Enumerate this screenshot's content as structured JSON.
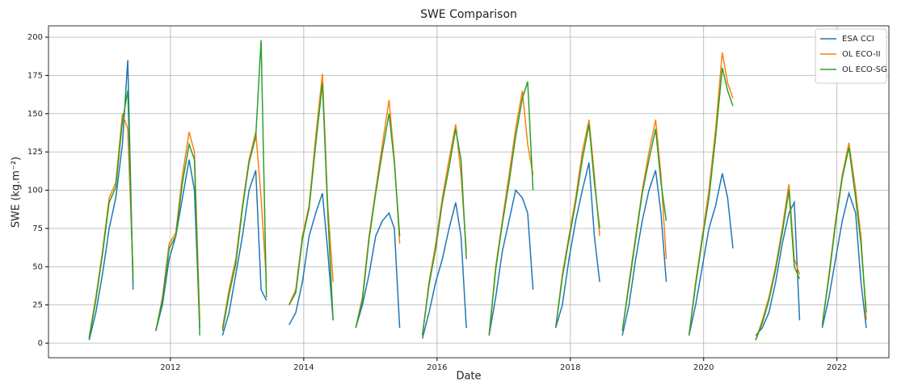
{
  "chart_data": {
    "type": "line",
    "title": "SWE Comparison",
    "x_label": "Date",
    "y_label": "SWE (kg.m⁻²)",
    "x": [
      2010.78,
      2010.88,
      2010.98,
      2011.08,
      2011.18,
      2011.28,
      2011.36,
      2011.44,
      2011.55,
      2011.78,
      2011.88,
      2011.98,
      2012.08,
      2012.18,
      2012.28,
      2012.36,
      2012.44,
      2012.55,
      2012.78,
      2012.88,
      2012.98,
      2013.08,
      2013.18,
      2013.28,
      2013.36,
      2013.44,
      2013.55,
      2013.78,
      2013.88,
      2013.98,
      2014.08,
      2014.18,
      2014.28,
      2014.36,
      2014.44,
      2014.55,
      2014.78,
      2014.88,
      2014.98,
      2015.08,
      2015.18,
      2015.28,
      2015.36,
      2015.44,
      2015.55,
      2015.78,
      2015.88,
      2015.98,
      2016.08,
      2016.18,
      2016.28,
      2016.36,
      2016.44,
      2016.55,
      2016.78,
      2016.88,
      2016.98,
      2017.08,
      2017.18,
      2017.28,
      2017.36,
      2017.44,
      2017.55,
      2017.78,
      2017.88,
      2017.98,
      2018.08,
      2018.18,
      2018.28,
      2018.36,
      2018.44,
      2018.55,
      2018.78,
      2018.88,
      2018.98,
      2019.08,
      2019.18,
      2019.28,
      2019.36,
      2019.44,
      2019.55,
      2019.78,
      2019.88,
      2019.98,
      2020.08,
      2020.18,
      2020.28,
      2020.36,
      2020.44,
      2020.55,
      2020.78,
      2020.88,
      2020.98,
      2021.08,
      2021.18,
      2021.28,
      2021.36,
      2021.44,
      2021.55,
      2021.78,
      2021.88,
      2021.98,
      2022.08,
      2022.18,
      2022.28,
      2022.36,
      2022.44,
      2022.55
    ],
    "series": [
      {
        "name": "ESA CCI",
        "color": "#1f77b4",
        "values": [
          2,
          20,
          45,
          75,
          95,
          130,
          185,
          35,
          null,
          8,
          25,
          55,
          70,
          95,
          120,
          100,
          10,
          null,
          5,
          20,
          45,
          70,
          100,
          113,
          35,
          28,
          null,
          12,
          20,
          40,
          70,
          85,
          98,
          60,
          15,
          null,
          10,
          25,
          45,
          70,
          80,
          85,
          75,
          10,
          null,
          3,
          20,
          40,
          55,
          75,
          92,
          70,
          10,
          null,
          5,
          30,
          60,
          80,
          100,
          95,
          85,
          35,
          null,
          10,
          25,
          55,
          80,
          100,
          118,
          70,
          40,
          null,
          5,
          25,
          55,
          80,
          100,
          113,
          85,
          40,
          null,
          5,
          25,
          50,
          75,
          90,
          111,
          95,
          62,
          null,
          5,
          10,
          20,
          40,
          65,
          85,
          92,
          15,
          null,
          10,
          30,
          55,
          80,
          98,
          85,
          40,
          10,
          null
        ]
      },
      {
        "name": "OL ECO-II",
        "color": "#ff7f0e",
        "values": [
          4,
          30,
          60,
          95,
          105,
          150,
          140,
          45,
          null,
          8,
          30,
          65,
          72,
          110,
          138,
          125,
          15,
          null,
          10,
          35,
          55,
          90,
          120,
          138,
          95,
          40,
          null,
          25,
          35,
          70,
          90,
          135,
          176,
          90,
          40,
          null,
          10,
          30,
          70,
          100,
          130,
          159,
          120,
          65,
          null,
          5,
          40,
          65,
          95,
          120,
          143,
          110,
          60,
          null,
          5,
          50,
          80,
          110,
          140,
          165,
          130,
          110,
          null,
          10,
          45,
          70,
          95,
          125,
          146,
          110,
          70,
          null,
          8,
          40,
          70,
          100,
          125,
          146,
          110,
          55,
          null,
          5,
          40,
          70,
          100,
          140,
          190,
          170,
          160,
          null,
          2,
          15,
          30,
          50,
          75,
          104,
          55,
          45,
          null,
          12,
          45,
          80,
          110,
          131,
          100,
          70,
          15,
          null
        ]
      },
      {
        "name": "OL ECO-SG",
        "color": "#2ca02c",
        "values": [
          3,
          28,
          58,
          92,
          102,
          145,
          165,
          40,
          null,
          8,
          28,
          62,
          70,
          105,
          130,
          120,
          5,
          null,
          8,
          32,
          52,
          88,
          118,
          135,
          198,
          30,
          null,
          25,
          33,
          68,
          88,
          130,
          170,
          85,
          15,
          null,
          10,
          28,
          68,
          98,
          125,
          150,
          118,
          70,
          null,
          5,
          38,
          62,
          92,
          115,
          140,
          120,
          55,
          null,
          5,
          48,
          78,
          105,
          135,
          160,
          171,
          100,
          null,
          10,
          43,
          68,
          92,
          120,
          143,
          105,
          75,
          null,
          8,
          38,
          68,
          98,
          120,
          140,
          105,
          80,
          null,
          5,
          38,
          68,
          95,
          135,
          180,
          165,
          155,
          null,
          2,
          13,
          28,
          48,
          72,
          100,
          50,
          42,
          null,
          12,
          43,
          78,
          108,
          128,
          95,
          65,
          20,
          null
        ]
      }
    ],
    "xlim": [
      2010.17,
      2022.78
    ],
    "xticks": [
      2012,
      2014,
      2016,
      2018,
      2020,
      2022
    ],
    "ylim": [
      -9.5,
      207.4
    ],
    "yticks": [
      0,
      25,
      50,
      75,
      100,
      125,
      150,
      175,
      200
    ],
    "grid": true,
    "legend": "upper right"
  }
}
